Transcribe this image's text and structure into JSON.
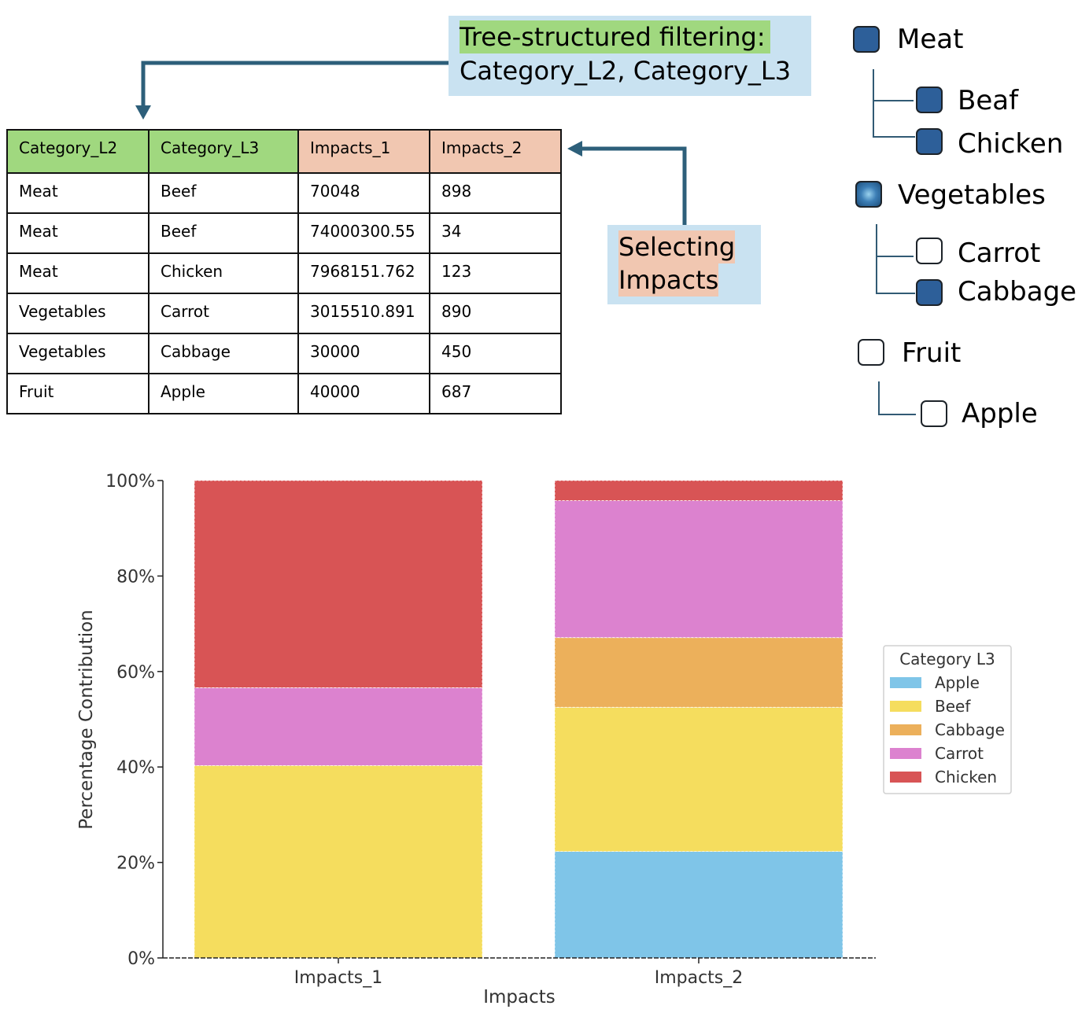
{
  "callouts": {
    "filter_line1": "Tree-structured filtering:",
    "filter_line2": "Category_L2, Category_L3",
    "select_line1": "Selecting",
    "select_line2": "Impacts"
  },
  "table": {
    "headers": [
      "Category_L2",
      "Category_L3",
      "Impacts_1",
      "Impacts_2"
    ],
    "rows": [
      [
        "Meat",
        "Beef",
        "70048",
        "898"
      ],
      [
        "Meat",
        "Beef",
        "74000300.55",
        "34"
      ],
      [
        "Meat",
        "Chicken",
        "7968151.762",
        "123"
      ],
      [
        "Vegetables",
        "Carrot",
        "3015510.891",
        "890"
      ],
      [
        "Vegetables",
        "Cabbage",
        "30000",
        "450"
      ],
      [
        "Fruit",
        "Apple",
        "40000",
        "687"
      ]
    ]
  },
  "tree": {
    "meat": {
      "label": "Meat",
      "state": "checked"
    },
    "beef": {
      "label": "Beaf",
      "state": "checked"
    },
    "chicken": {
      "label": "Chicken",
      "state": "checked"
    },
    "vegetables": {
      "label": "Vegetables",
      "state": "partial"
    },
    "carrot": {
      "label": "Carrot",
      "state": "unchecked"
    },
    "cabbage": {
      "label": "Cabbage",
      "state": "checked"
    },
    "fruit": {
      "label": "Fruit",
      "state": "unchecked"
    },
    "apple": {
      "label": "Apple",
      "state": "unchecked"
    }
  },
  "colors": {
    "Apple": "#7fc5e8",
    "Beef": "#f5dd5e",
    "Cabbage": "#ecb05b",
    "Carrot": "#dc82cf",
    "Chicken": "#d85455",
    "arrow": "#2d5f7a"
  },
  "chart_data": {
    "type": "bar",
    "stacked": true,
    "categories": [
      "Impacts_1",
      "Impacts_2"
    ],
    "series": [
      {
        "name": "Apple",
        "values": [
          0,
          22.3
        ]
      },
      {
        "name": "Beef",
        "values": [
          40.3,
          30.2
        ]
      },
      {
        "name": "Cabbage",
        "values": [
          0,
          14.6
        ]
      },
      {
        "name": "Carrot",
        "values": [
          16.3,
          28.7
        ]
      },
      {
        "name": "Chicken",
        "values": [
          43.4,
          4.2
        ]
      }
    ],
    "xlabel": "Impacts",
    "ylabel": "Percentage Contribution",
    "ylim": [
      0,
      100
    ],
    "yticks": [
      "0%",
      "20%",
      "40%",
      "60%",
      "80%",
      "100%"
    ],
    "legend_title": "Category L3",
    "legend_position": "right"
  }
}
